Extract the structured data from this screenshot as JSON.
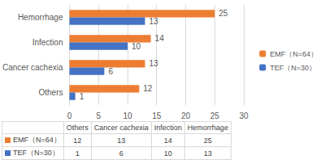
{
  "chart_data": {
    "type": "bar",
    "orientation": "horizontal",
    "categories": [
      "Others",
      "Cancer cachexia",
      "Infection",
      "Hemorrhage"
    ],
    "series": [
      {
        "name": "EMF（N=64）",
        "color": "#ED7D31",
        "values": [
          12,
          13,
          14,
          25
        ]
      },
      {
        "name": "TEF（N=30）",
        "color": "#4472C4",
        "values": [
          1,
          6,
          10,
          13
        ]
      }
    ],
    "xlim": [
      0,
      30
    ],
    "xticks": [
      0,
      5,
      10,
      15,
      20,
      25,
      30
    ],
    "grid": true,
    "legend": "right",
    "data_labels": true
  }
}
